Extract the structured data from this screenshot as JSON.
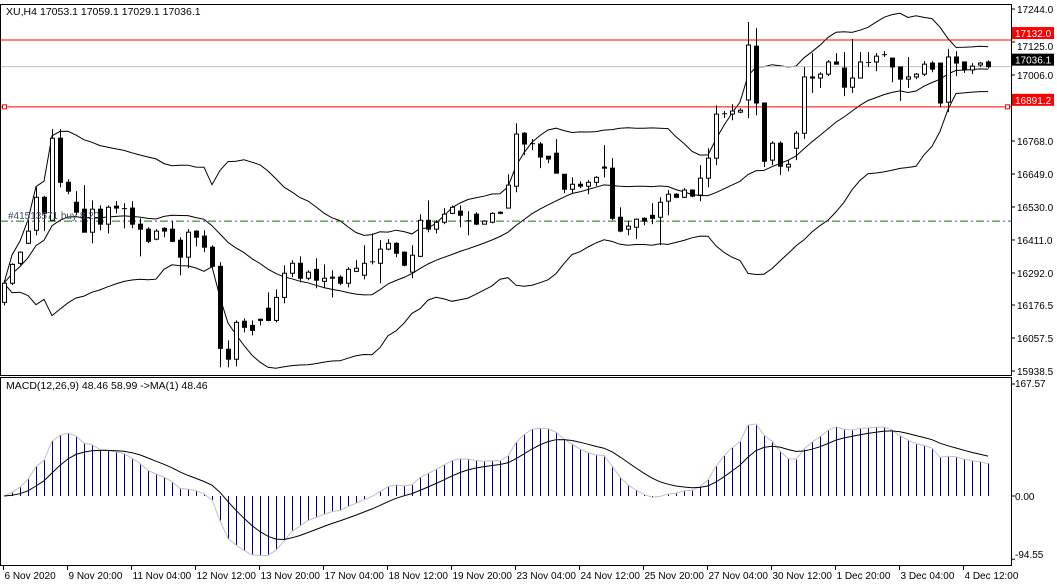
{
  "header": {
    "symbol_tf": "XU,H4",
    "ohlc": "17053.1 17059.1 17029.1 17036.1"
  },
  "colors": {
    "level_line": "#ff0000",
    "bid_line": "#c0c0c0",
    "order_line": "#008000",
    "macd_hist": "#000080",
    "macd_main": "#c0c0c0",
    "macd_signal": "#000000"
  },
  "levels": {
    "resistance": {
      "price": 17132.0,
      "label": "17132.0"
    },
    "support": {
      "price": 16891.2,
      "label": "16891.2"
    },
    "bid": {
      "price": 17036.1,
      "label": "17036.1"
    },
    "order": {
      "price": 16479,
      "label": "#41513571 buy 8.20"
    }
  },
  "macd_panel": {
    "label": "MACD(12,26,9) 48.46 58.99  ->MA(1) 48.46",
    "axis_labels": [
      "167.57",
      "0.00",
      "-94.55"
    ],
    "range": [
      -94.55,
      167.57
    ]
  },
  "chart_data": {
    "type": "candlestick",
    "symbol": "XU",
    "timeframe": "H4",
    "y_range": [
      15938.5,
      17244.0
    ],
    "y_ticks": [
      "17244.0",
      "17125.0",
      "17006.0",
      "16768.0",
      "16649.0",
      "16530.0",
      "16411.0",
      "16292.0",
      "16176.5",
      "16057.5",
      "15938.5"
    ],
    "x_ticks": [
      {
        "bar": 0,
        "label": "6 Nov 2020"
      },
      {
        "bar": 8,
        "label": "9 Nov 20:00"
      },
      {
        "bar": 16,
        "label": "11 Nov 04:00"
      },
      {
        "bar": 24,
        "label": "12 Nov 12:00"
      },
      {
        "bar": 32,
        "label": "13 Nov 20:00"
      },
      {
        "bar": 40,
        "label": "17 Nov 04:00"
      },
      {
        "bar": 48,
        "label": "18 Nov 12:00"
      },
      {
        "bar": 56,
        "label": "19 Nov 20:00"
      },
      {
        "bar": 64,
        "label": "23 Nov 04:00"
      },
      {
        "bar": 72,
        "label": "24 Nov 12:00"
      },
      {
        "bar": 80,
        "label": "25 Nov 20:00"
      },
      {
        "bar": 88,
        "label": "27 Nov 04:00"
      },
      {
        "bar": 96,
        "label": "30 Nov 12:00"
      },
      {
        "bar": 104,
        "label": "1 Dec 20:00"
      },
      {
        "bar": 112,
        "label": "3 Dec 04:00"
      },
      {
        "bar": 120,
        "label": "4 Dec 12:00"
      }
    ],
    "indicators": [
      "Bollinger Bands(20,2)",
      "MACD(12,26,9)"
    ],
    "ohlc": [
      [
        16186,
        16266,
        16175,
        16255
      ],
      [
        16255,
        16327,
        16248,
        16323
      ],
      [
        16327,
        16370,
        16320,
        16367
      ],
      [
        16399,
        16482,
        16396,
        16443
      ],
      [
        16446,
        16601,
        16428,
        16565
      ],
      [
        16565,
        16570,
        16443,
        16507
      ],
      [
        16482,
        16811,
        16482,
        16778
      ],
      [
        16778,
        16811,
        16601,
        16619
      ],
      [
        16619,
        16630,
        16576,
        16587
      ],
      [
        16547,
        16587,
        16500,
        16511
      ],
      [
        16522,
        16609,
        16439,
        16439
      ],
      [
        16439,
        16554,
        16399,
        16522
      ],
      [
        16522,
        16536,
        16446,
        16468
      ],
      [
        16468,
        16536,
        16435,
        16529
      ],
      [
        16533,
        16551,
        16507,
        16526
      ],
      [
        16526,
        16544,
        16453,
        16526
      ],
      [
        16526,
        16551,
        16453,
        16468
      ],
      [
        16468,
        16489,
        16352,
        16450
      ],
      [
        16450,
        16457,
        16399,
        16406
      ],
      [
        16414,
        16450,
        16410,
        16443
      ],
      [
        16453,
        16457,
        16421,
        16443
      ],
      [
        16450,
        16479,
        16403,
        16406
      ],
      [
        16410,
        16421,
        16284,
        16349
      ],
      [
        16349,
        16450,
        16309,
        16439
      ],
      [
        16443,
        16446,
        16388,
        16421
      ],
      [
        16425,
        16446,
        16367,
        16385
      ],
      [
        16385,
        16392,
        16309,
        16316
      ],
      [
        16316,
        16331,
        15952,
        16020
      ],
      [
        16017,
        16049,
        15952,
        15981
      ],
      [
        15981,
        16121,
        15955,
        16114
      ],
      [
        16118,
        16128,
        16078,
        16096
      ],
      [
        16103,
        16121,
        16067,
        16085
      ],
      [
        16125,
        16128,
        16103,
        16121
      ],
      [
        16165,
        16222,
        16118,
        16121
      ],
      [
        16121,
        16233,
        16114,
        16204
      ],
      [
        16204,
        16320,
        16183,
        16291
      ],
      [
        16291,
        16338,
        16277,
        16327
      ],
      [
        16327,
        16352,
        16258,
        16273
      ],
      [
        16273,
        16302,
        16266,
        16295
      ],
      [
        16305,
        16345,
        16237,
        16266
      ],
      [
        16262,
        16323,
        16237,
        16273
      ],
      [
        16273,
        16302,
        16204,
        16277
      ],
      [
        16277,
        16284,
        16248,
        16255
      ],
      [
        16255,
        16313,
        16240,
        16305
      ],
      [
        16298,
        16338,
        16295,
        16309
      ],
      [
        16284,
        16392,
        16269,
        16327
      ],
      [
        16331,
        16435,
        16323,
        16334
      ],
      [
        16327,
        16410,
        16255,
        16378
      ],
      [
        16378,
        16414,
        16374,
        16399
      ],
      [
        16399,
        16403,
        16349,
        16363
      ],
      [
        16367,
        16370,
        16316,
        16320
      ],
      [
        16295,
        16392,
        16273,
        16356
      ],
      [
        16352,
        16504,
        16349,
        16482
      ],
      [
        16482,
        16554,
        16439,
        16450
      ],
      [
        16450,
        16482,
        16435,
        16475
      ],
      [
        16475,
        16526,
        16468,
        16504
      ],
      [
        16507,
        16536,
        16504,
        16529
      ],
      [
        16515,
        16536,
        16457,
        16500
      ],
      [
        16479,
        16515,
        16428,
        16482
      ],
      [
        16504,
        16511,
        16464,
        16468
      ],
      [
        16468,
        16482,
        16468,
        16479
      ],
      [
        16475,
        16511,
        16471,
        16507
      ],
      [
        16511,
        16515,
        16504,
        16507
      ],
      [
        16526,
        16648,
        16526,
        16609
      ],
      [
        16605,
        16832,
        16583,
        16793
      ],
      [
        16796,
        16800,
        16717,
        16757
      ],
      [
        16760,
        16775,
        16735,
        16757
      ],
      [
        16757,
        16764,
        16670,
        16710
      ],
      [
        16713,
        16713,
        16688,
        16703
      ],
      [
        16724,
        16775,
        16652,
        16652
      ],
      [
        16648,
        16648,
        16580,
        16594
      ],
      [
        16594,
        16637,
        16580,
        16612
      ],
      [
        16612,
        16623,
        16598,
        16605
      ],
      [
        16605,
        16627,
        16576,
        16619
      ],
      [
        16619,
        16641,
        16605,
        16637
      ],
      [
        16674,
        16753,
        16637,
        16670
      ],
      [
        16670,
        16706,
        16482,
        16489
      ],
      [
        16493,
        16529,
        16439,
        16443
      ],
      [
        16450,
        16479,
        16428,
        16461
      ],
      [
        16457,
        16489,
        16414,
        16486
      ],
      [
        16489,
        16493,
        16464,
        16479
      ],
      [
        16500,
        16544,
        16468,
        16489
      ],
      [
        16493,
        16565,
        16392,
        16547
      ],
      [
        16551,
        16591,
        16500,
        16576
      ],
      [
        16576,
        16580,
        16562,
        16565
      ],
      [
        16565,
        16598,
        16562,
        16591
      ],
      [
        16591,
        16594,
        16565,
        16569
      ],
      [
        16573,
        16681,
        16551,
        16634
      ],
      [
        16634,
        16742,
        16601,
        16706
      ],
      [
        16706,
        16897,
        16681,
        16865
      ],
      [
        16865,
        16876,
        16851,
        16868
      ],
      [
        16865,
        16901,
        16843,
        16876
      ],
      [
        16872,
        16886,
        16868,
        16879
      ],
      [
        16916,
        17197,
        16851,
        17114
      ],
      [
        17110,
        17175,
        16861,
        16905
      ],
      [
        16905,
        16905,
        16674,
        16695
      ],
      [
        16699,
        16767,
        16681,
        16760
      ],
      [
        16760,
        16767,
        16645,
        16677
      ],
      [
        16674,
        16699,
        16659,
        16684
      ],
      [
        16742,
        16804,
        16699,
        16796
      ],
      [
        16796,
        17035,
        16775,
        16999
      ],
      [
        16999,
        17085,
        16941,
        16995
      ],
      [
        16995,
        17016,
        16959,
        17009
      ],
      [
        17009,
        17060,
        17002,
        17053
      ],
      [
        17053,
        17085,
        17045,
        17045
      ],
      [
        17031,
        17089,
        16930,
        16962
      ],
      [
        16962,
        17136,
        16941,
        16995
      ],
      [
        16995,
        17089,
        16995,
        17053
      ],
      [
        17053,
        17089,
        17035,
        17052
      ],
      [
        17053,
        17085,
        17020,
        17074
      ],
      [
        17081,
        17092,
        17071,
        17081
      ],
      [
        17067,
        17067,
        16980,
        17035
      ],
      [
        17035,
        17035,
        16912,
        16991
      ],
      [
        16991,
        17071,
        16959,
        16999
      ],
      [
        16999,
        17013,
        16991,
        17009
      ],
      [
        17009,
        17056,
        17002,
        17045
      ],
      [
        17049,
        17056,
        17016,
        17027
      ],
      [
        17049,
        17049,
        16890,
        16905
      ],
      [
        16908,
        17100,
        16872,
        17071
      ],
      [
        17071,
        17092,
        17002,
        17049
      ],
      [
        17053,
        17053,
        17013,
        17024
      ],
      [
        17024,
        17049,
        17009,
        17038
      ],
      [
        17042,
        17053,
        17035,
        17049
      ],
      [
        17053.1,
        17059.1,
        17029.1,
        17036.1
      ]
    ]
  }
}
